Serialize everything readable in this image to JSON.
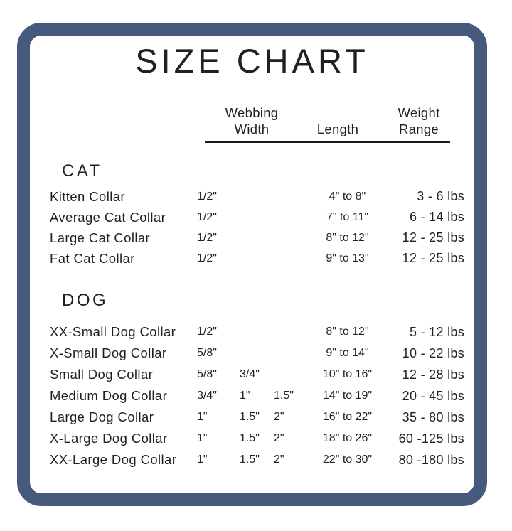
{
  "colors": {
    "frame_border": "#47597C",
    "text": "#231F20",
    "header_rule": "#1A1A1A",
    "background": "#FFFFFF"
  },
  "chart_data": {
    "type": "table",
    "title": "SIZE CHART",
    "headers": {
      "webbing_line1": "Webbing",
      "webbing_line2": "Width",
      "length": "Length",
      "weight_line1": "Weight",
      "weight_line2": "Range"
    },
    "sections": [
      {
        "label": "CAT",
        "rows": [
          {
            "name": "Kitten Collar",
            "w1": "1/2\"",
            "length": "4\" to 8\"",
            "weight": "3 - 6 lbs"
          },
          {
            "name": "Average Cat Collar",
            "w1": "1/2\"",
            "length": "7\" to 11\"",
            "weight": "6 - 14 lbs"
          },
          {
            "name": "Large Cat Collar",
            "w1": "1/2\"",
            "length": "8\" to 12\"",
            "weight": "12 - 25 lbs"
          },
          {
            "name": "Fat Cat Collar",
            "w1": "1/2\"",
            "length": "9\" to 13\"",
            "weight": "12 - 25 lbs"
          }
        ]
      },
      {
        "label": "DOG",
        "rows": [
          {
            "name": "XX-Small Dog Collar",
            "w1": "1/2\"",
            "length": "8\" to 12\"",
            "weight": "5 - 12 lbs"
          },
          {
            "name": "X-Small Dog Collar",
            "w1": "5/8\"",
            "length": "9\" to 14\"",
            "weight": "10 - 22 lbs"
          },
          {
            "name": "Small Dog Collar",
            "w1": "5/8\"",
            "w2": "3/4\"",
            "length": "10\" to 16\"",
            "weight": "12 - 28 lbs"
          },
          {
            "name": "Medium Dog Collar",
            "w1": "3/4\"",
            "w2": "1\"",
            "w3": "1.5\"",
            "length": "14\" to 19\"",
            "weight": "20 - 45 lbs"
          },
          {
            "name": "Large Dog Collar",
            "w1": "1\"",
            "w2": "1.5\"",
            "w3": "2\"",
            "length": "16\" to 22\"",
            "weight": "35 - 80 lbs"
          },
          {
            "name": "X-Large Dog Collar",
            "w1": "1\"",
            "w2": "1.5\"",
            "w3": "2\"",
            "length": "18\" to 26\"",
            "weight": "60 -125 lbs"
          },
          {
            "name": "XX-Large Dog Collar",
            "w1": "1\"",
            "w2": "1.5\"",
            "w3": "2\"",
            "length": "22\" to 30\"",
            "weight": "80 -180 lbs"
          }
        ]
      }
    ]
  }
}
